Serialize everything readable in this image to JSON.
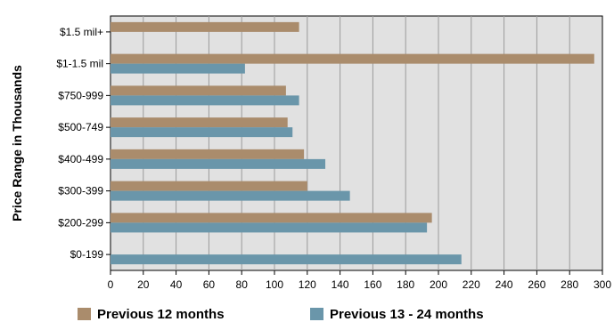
{
  "chart_data": {
    "type": "bar",
    "orientation": "horizontal",
    "ylabel": "Price Range in Thousands",
    "xlabel": "",
    "categories": [
      "$1.5 mil+",
      "$1-1.5 mil",
      "$750-999",
      "$500-749",
      "$400-499",
      "$300-399",
      "$200-299",
      "$0-199"
    ],
    "series": [
      {
        "name": "Previous 12 months",
        "color": "#aa8c6c",
        "values": [
          115,
          295,
          107,
          108,
          118,
          120,
          196,
          0
        ]
      },
      {
        "name": "Previous 13 - 24 months",
        "color": "#6a96aa",
        "values": [
          0,
          82,
          115,
          111,
          131,
          146,
          193,
          214
        ]
      }
    ],
    "xlim": [
      0,
      300
    ],
    "xticks": [
      "0",
      "20",
      "40",
      "60",
      "80",
      "100",
      "120",
      "140",
      "160",
      "180",
      "200",
      "220",
      "240",
      "260",
      "280",
      "300"
    ],
    "grid": true,
    "legend_position": "bottom"
  }
}
